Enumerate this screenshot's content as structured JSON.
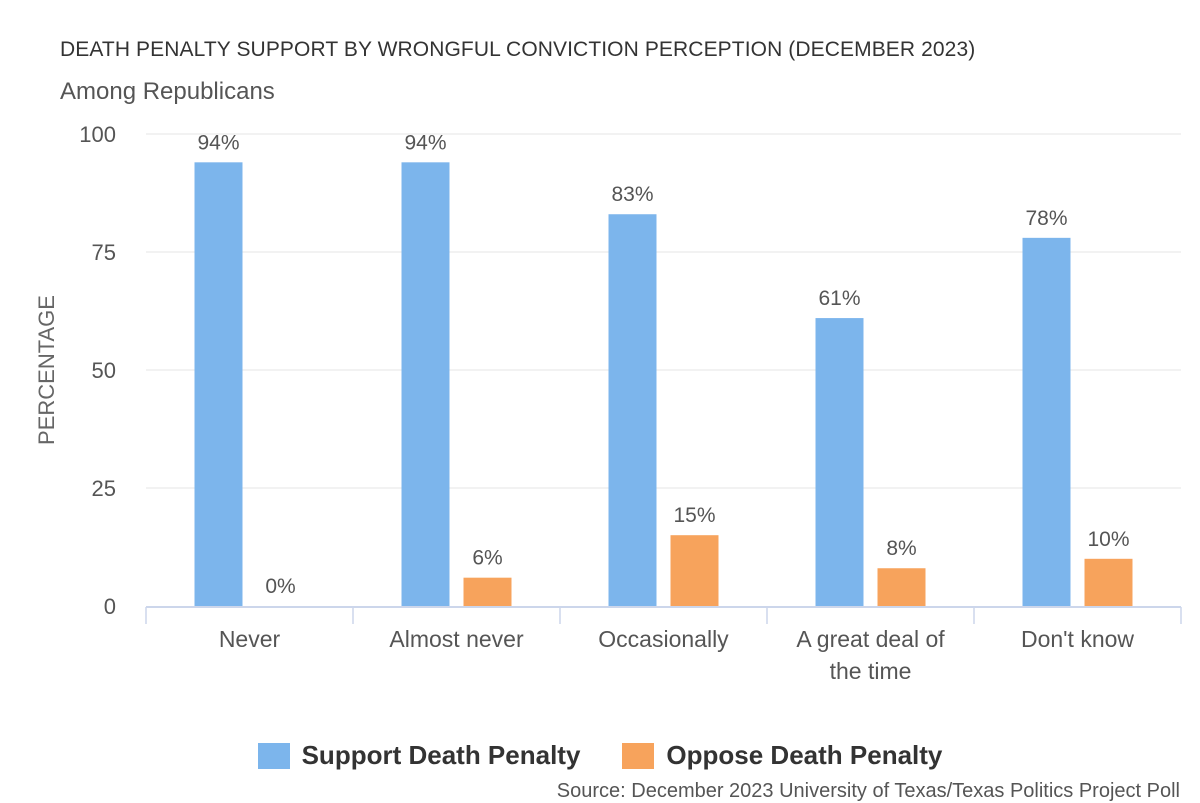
{
  "chart_data": {
    "type": "bar",
    "title": "DEATH PENALTY SUPPORT BY WRONGFUL CONVICTION PERCEPTION (DECEMBER 2023)",
    "subtitle": "Among Republicans",
    "ylabel": "PERCENTAGE",
    "xlabel": "",
    "ylim": [
      0,
      100
    ],
    "yticks": [
      0,
      25,
      50,
      75,
      100
    ],
    "grid": true,
    "legend_position": "bottom-center",
    "categories": [
      [
        "Never"
      ],
      [
        "Almost never"
      ],
      [
        "Occasionally"
      ],
      [
        "A great deal of",
        "the time"
      ],
      [
        "Don't know"
      ]
    ],
    "series": [
      {
        "name": "Support Death Penalty",
        "color": "#7cb5ec",
        "values": [
          94,
          94,
          83,
          61,
          78
        ],
        "labels": [
          "94%",
          "94%",
          "83%",
          "61%",
          "78%"
        ]
      },
      {
        "name": "Oppose Death Penalty",
        "color": "#f7a35c",
        "values": [
          0,
          6,
          15,
          8,
          10
        ],
        "labels": [
          "0%",
          "6%",
          "15%",
          "8%",
          "10%"
        ]
      }
    ],
    "source": "Source: December 2023 University of Texas/Texas Politics Project Poll"
  }
}
